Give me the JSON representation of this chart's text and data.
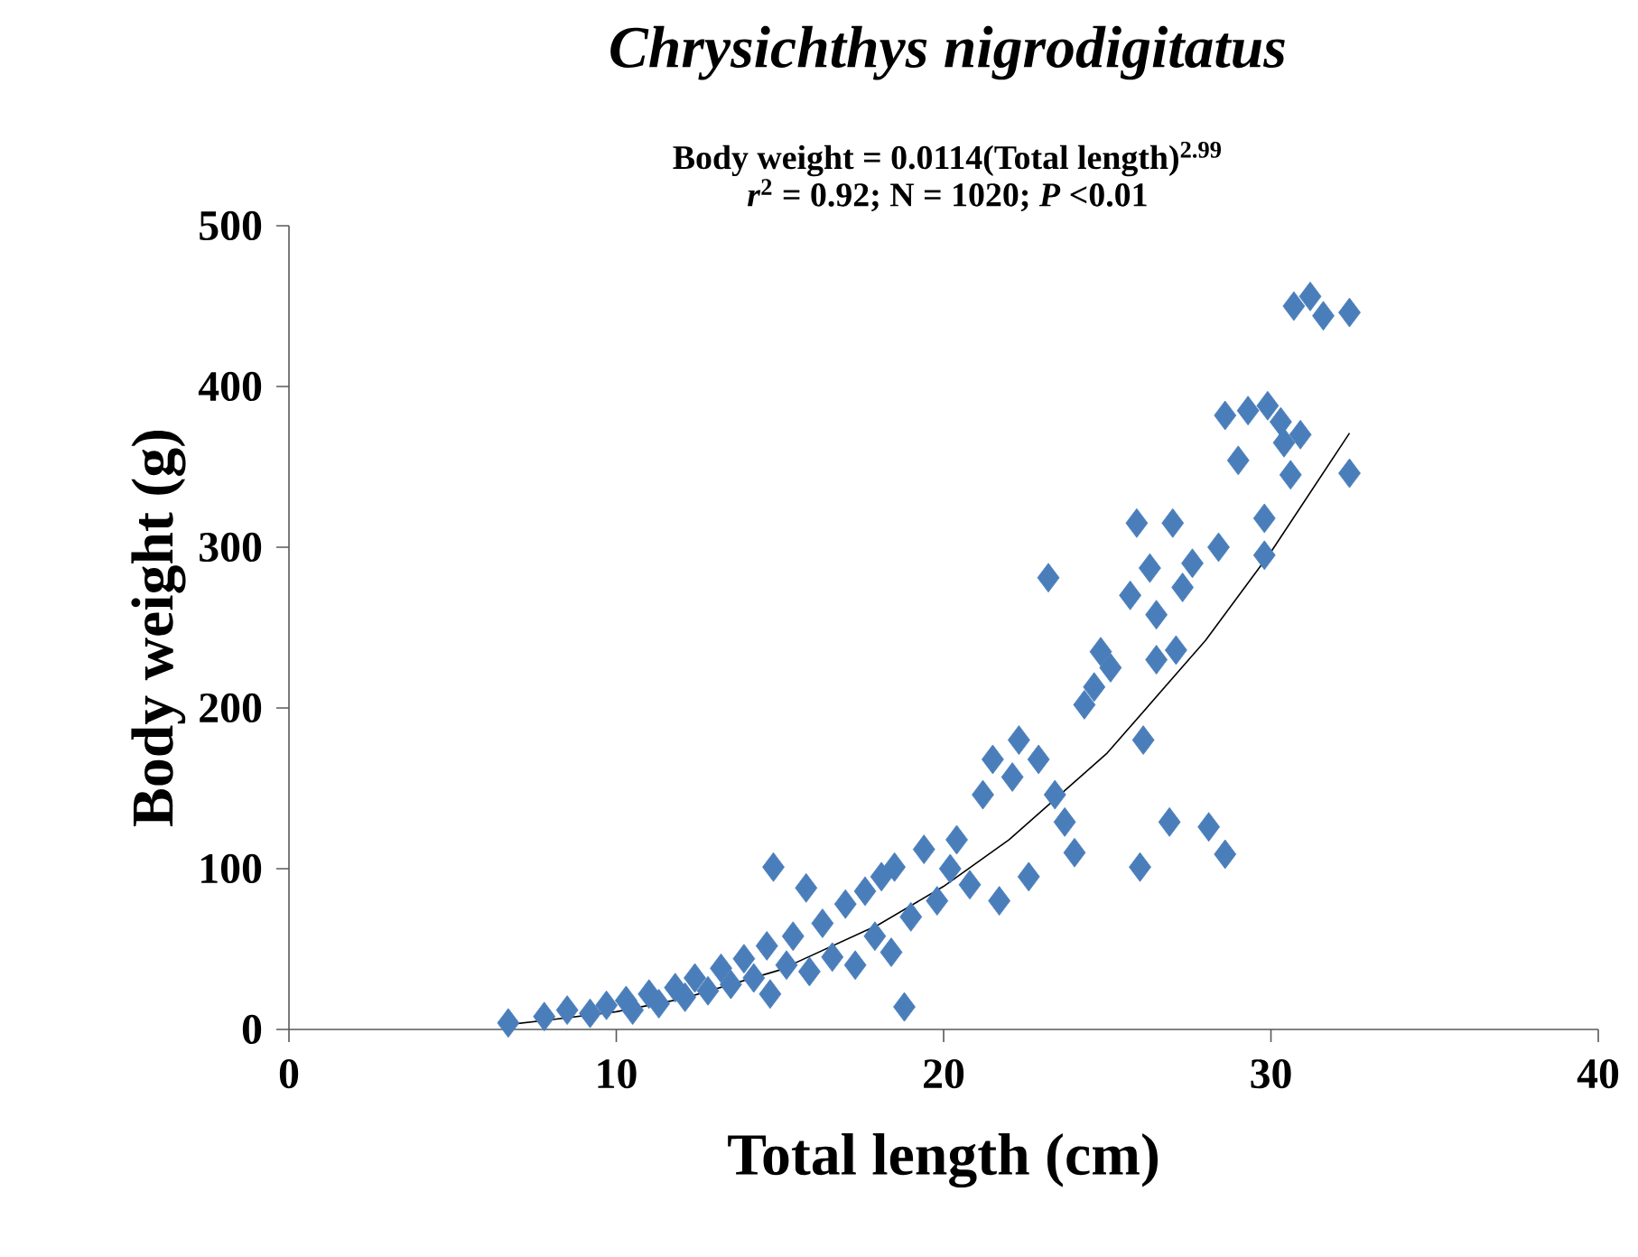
{
  "chart_data": {
    "type": "scatter",
    "title": "Chrysichthys nigrodigitatus",
    "annotations": [
      "Body weight = 0.0114(Total length)$^{2.99}$",
      "*r*$^{2}$ = 0.92; N = 1020; *P* <0.01"
    ],
    "xlabel": "Total length (cm)",
    "ylabel": "Body weight (g)",
    "xlim": [
      0,
      40
    ],
    "ylim": [
      0,
      500
    ],
    "xticks": [
      0,
      10,
      20,
      30,
      40
    ],
    "yticks": [
      0,
      100,
      200,
      300,
      400,
      500
    ],
    "marker": "diamond",
    "grid": false,
    "series": [
      {
        "color": "#4a7ebb",
        "x": [
          6.7,
          7.8,
          8.5,
          9.2,
          9.7,
          10.3,
          10.5,
          11.0,
          11.3,
          11.8,
          12.1,
          12.4,
          12.8,
          13.2,
          13.5,
          13.9,
          14.2,
          14.6,
          14.7,
          14.8,
          15.2,
          15.4,
          15.8,
          15.9,
          16.3,
          16.6,
          17.0,
          17.3,
          17.6,
          17.9,
          18.1,
          18.4,
          18.5,
          18.8,
          19.0,
          19.4,
          19.8,
          20.2,
          20.4,
          20.8,
          21.2,
          21.5,
          21.7,
          22.1,
          22.3,
          22.6,
          22.9,
          23.2,
          23.4,
          23.7,
          24.0,
          24.3,
          24.6,
          24.8,
          25.1,
          25.7,
          25.9,
          26.0,
          26.1,
          26.3,
          26.5,
          26.5,
          26.9,
          27.0,
          27.1,
          27.3,
          27.6,
          28.1,
          28.4,
          28.6,
          28.6,
          29.0,
          29.3,
          29.8,
          29.8,
          29.9,
          30.3,
          30.4,
          30.6,
          30.9,
          30.7,
          31.2,
          31.6,
          32.4,
          32.4
        ],
        "values": [
          4,
          8,
          12,
          10,
          15,
          18,
          12,
          22,
          16,
          26,
          20,
          32,
          24,
          38,
          28,
          44,
          32,
          52,
          22,
          101,
          40,
          58,
          88,
          36,
          66,
          45,
          78,
          40,
          86,
          58,
          95,
          48,
          101,
          14,
          70,
          112,
          80,
          100,
          118,
          90,
          146,
          168,
          80,
          157,
          180,
          95,
          168,
          281,
          146,
          129,
          110,
          202,
          213,
          235,
          225,
          270,
          315,
          101,
          180,
          287,
          258,
          230,
          129,
          315,
          236,
          275,
          290,
          126,
          300,
          109,
          382,
          354,
          385,
          318,
          295,
          388,
          378,
          365,
          345,
          370,
          450,
          456,
          444,
          446,
          346
        ]
      },
      {
        "type": "line",
        "color": "#000000",
        "marker": "none",
        "x": [
          6.7,
          8,
          10,
          12,
          15,
          18,
          20,
          22,
          25,
          28,
          30,
          32.4
        ],
        "values": [
          3,
          6,
          11,
          19,
          37,
          65,
          89,
          118,
          172,
          242,
          297,
          371
        ]
      }
    ]
  }
}
